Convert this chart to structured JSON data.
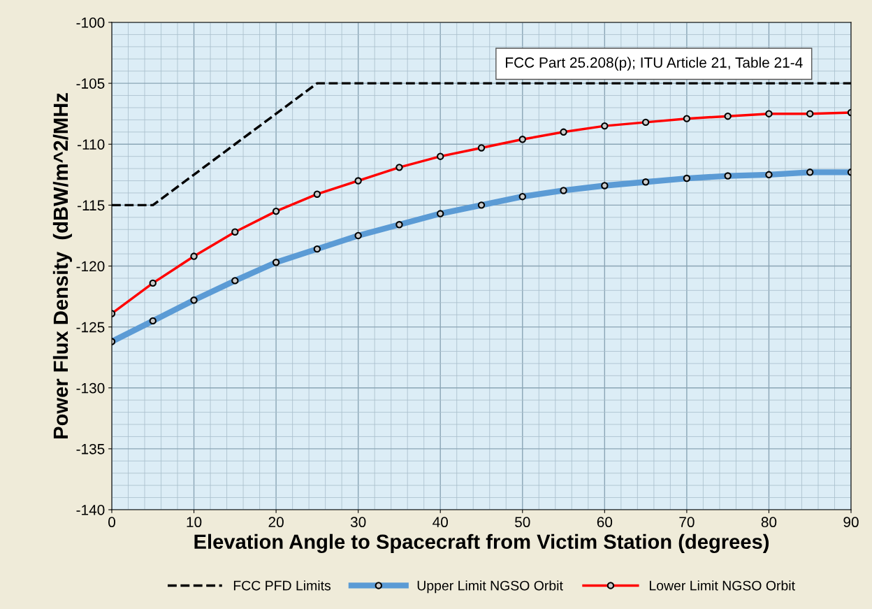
{
  "chart_data": {
    "type": "line",
    "xlabel": "Elevation Angle to Spacecraft from Victim Station (degrees)",
    "ylabel": "Power Flux Density  (dBW/m^2/MHz",
    "x": [
      0,
      5,
      10,
      15,
      20,
      25,
      30,
      35,
      40,
      45,
      50,
      55,
      60,
      65,
      70,
      75,
      80,
      85,
      90
    ],
    "series": [
      {
        "name": "FCC PFD Limits",
        "color": "#000000",
        "line_style": "dashed",
        "marker": "none",
        "values": [
          -115,
          -115,
          -112.5,
          -110,
          -107.5,
          -105,
          -105,
          -105,
          -105,
          -105,
          -105,
          -105,
          -105,
          -105,
          -105,
          -105,
          -105,
          -105,
          -105
        ]
      },
      {
        "name": "Upper Limit NGSO Orbit",
        "color": "#5b9bd5",
        "line_style": "solid",
        "marker": "circle",
        "values": [
          -126.2,
          -124.5,
          -122.8,
          -121.2,
          -119.7,
          -118.6,
          -117.5,
          -116.6,
          -115.7,
          -115.0,
          -114.3,
          -113.8,
          -113.4,
          -113.1,
          -112.8,
          -112.6,
          -112.5,
          -112.3,
          -112.3
        ]
      },
      {
        "name": "Lower Limit NGSO Orbit",
        "color": "#ff0000",
        "line_style": "solid",
        "marker": "circle",
        "values": [
          -123.9,
          -121.4,
          -119.2,
          -117.2,
          -115.5,
          -114.1,
          -113.0,
          -111.9,
          -111.0,
          -110.3,
          -109.6,
          -109.0,
          -108.5,
          -108.2,
          -107.9,
          -107.7,
          -107.5,
          -107.5,
          -107.4
        ]
      }
    ],
    "xlim": [
      0,
      90
    ],
    "xticks": [
      0,
      10,
      20,
      30,
      40,
      50,
      60,
      70,
      80,
      90
    ],
    "ylim": [
      -140,
      -100
    ],
    "yticks": [
      -140,
      -135,
      -130,
      -125,
      -120,
      -115,
      -110,
      -105,
      -100
    ],
    "grid": true,
    "legend": "bottom",
    "annotations": [
      "FCC Part 25.208(p); ITU Article 21, Table 21-4"
    ]
  }
}
